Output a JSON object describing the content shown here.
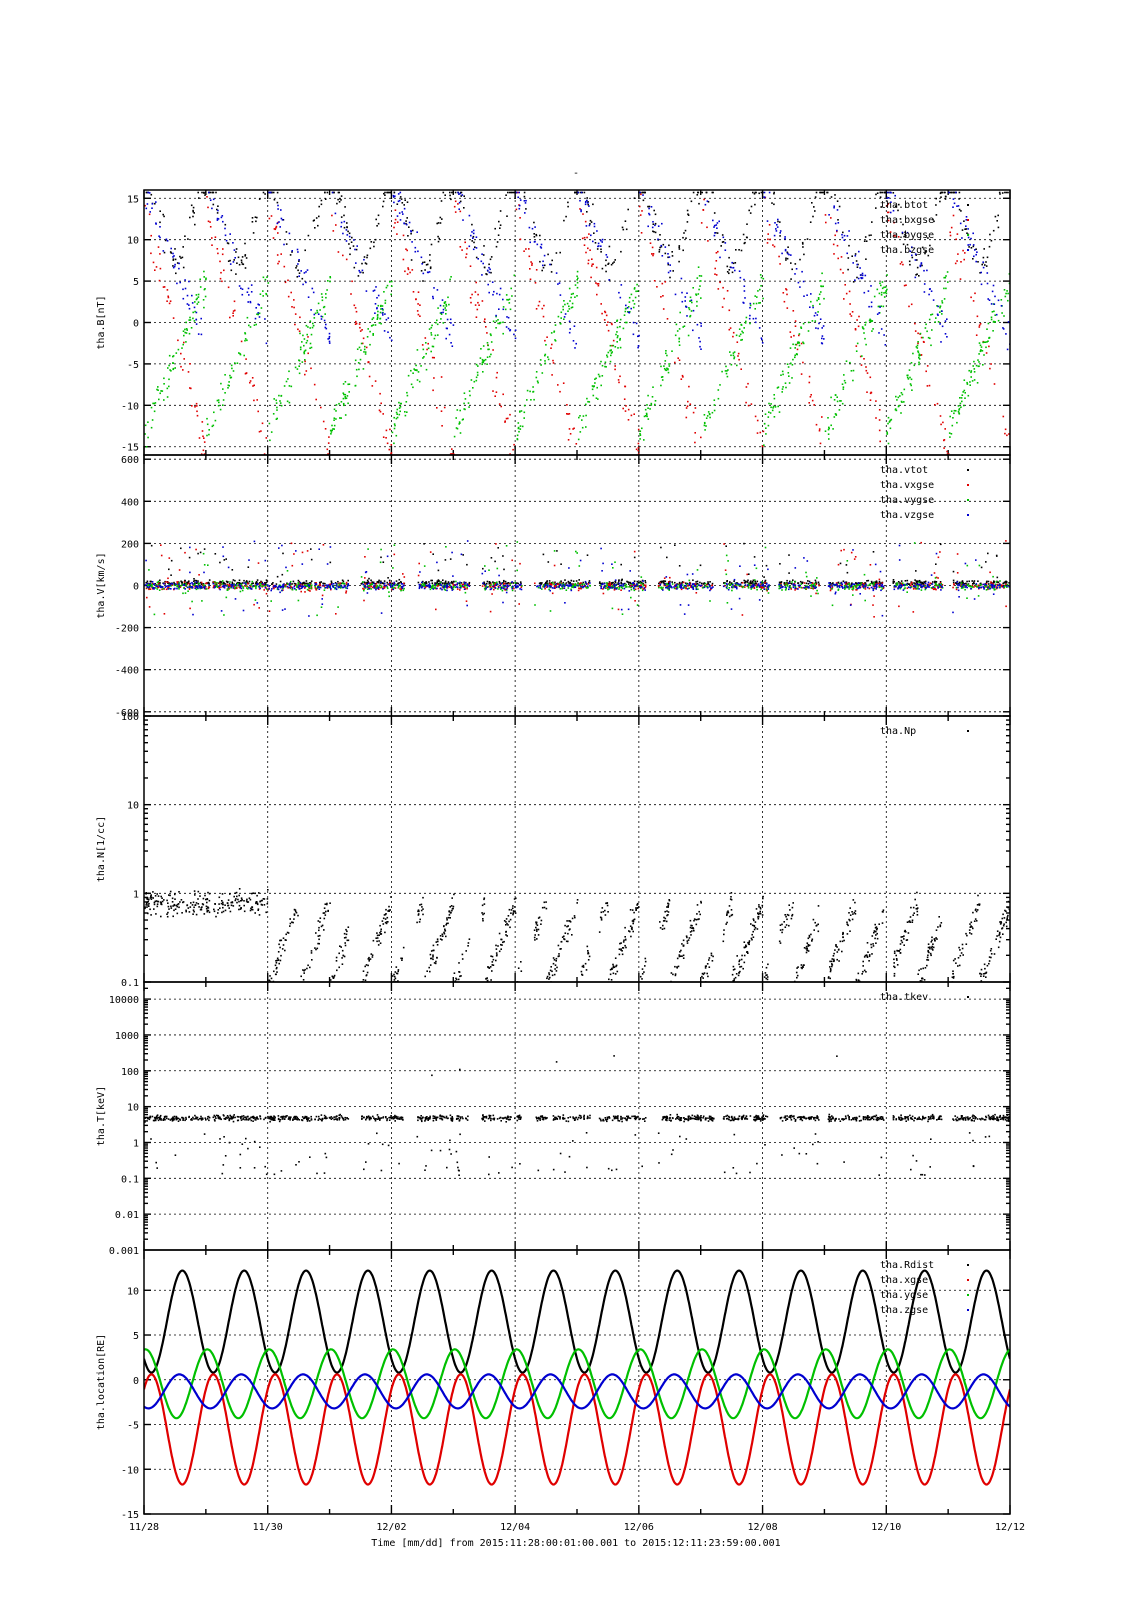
{
  "chart_data": {
    "type": "scatter",
    "title": "-",
    "time_axis": {
      "start": "11/28",
      "end": "12/12",
      "tick_labels": [
        "11/28",
        "11/30",
        "12/02",
        "12/04",
        "12/06",
        "12/08",
        "12/10",
        "12/12"
      ],
      "minor_ticks_per_day": 1,
      "label": "Time [mm/dd]  from 2015:11:28:00:01:00.001  to  2015:12:11:23:59:00.001"
    },
    "colors": {
      "black": "#000000",
      "red": "#e00000",
      "green": "#00c000",
      "blue": "#0000d0"
    },
    "panels": [
      {
        "id": "B",
        "ylabel": "tha.B[nT]",
        "scale": "linear",
        "ylim": [
          -16,
          16
        ],
        "y_ticks": [
          -15,
          -10,
          -5,
          0,
          5,
          10,
          15
        ],
        "y_tick_labels": [
          "-15",
          "-10",
          "-5",
          "0",
          "5",
          "10",
          "15"
        ],
        "grid": true,
        "series": [
          {
            "name": "tha.btot",
            "color": "black"
          },
          {
            "name": "tha.bxgse",
            "color": "red"
          },
          {
            "name": "tha.bygse",
            "color": "green"
          },
          {
            "name": "tha.bzgse",
            "color": "blue"
          }
        ]
      },
      {
        "id": "V",
        "ylabel": "tha.V[km/s]",
        "scale": "linear",
        "ylim": [
          -620,
          620
        ],
        "y_ticks": [
          -600,
          -400,
          -200,
          0,
          200,
          400,
          600
        ],
        "y_tick_labels": [
          "-600",
          "-400",
          "-200",
          "0",
          "200",
          "400",
          "600"
        ],
        "grid": true,
        "series": [
          {
            "name": "tha.vtot",
            "color": "black"
          },
          {
            "name": "tha.vxgse",
            "color": "red"
          },
          {
            "name": "tha.vygse",
            "color": "green"
          },
          {
            "name": "tha.vzgse",
            "color": "blue"
          }
        ]
      },
      {
        "id": "N",
        "ylabel": "tha.N[1/cc]",
        "scale": "log",
        "ylim": [
          0.1,
          100
        ],
        "y_ticks": [
          0.1,
          1,
          10,
          100
        ],
        "y_tick_labels": [
          "0.1",
          "1",
          "10",
          "100"
        ],
        "grid": true,
        "series": [
          {
            "name": "tha.Np",
            "color": "black"
          }
        ]
      },
      {
        "id": "T",
        "ylabel": "tha.T[keV]",
        "scale": "log",
        "ylim": [
          0.001,
          30000
        ],
        "y_ticks": [
          0.01,
          0.1,
          1,
          10,
          100,
          1000,
          10000
        ],
        "y_tick_labels": [
          "0.01",
          "0.1",
          "1",
          "10",
          "100",
          "1000",
          "10000"
        ],
        "bottom_tick_label": "0.001",
        "grid": true,
        "series": [
          {
            "name": "tha.tkev",
            "color": "black"
          }
        ]
      },
      {
        "id": "L",
        "ylabel": "tha.location[RE]",
        "scale": "linear",
        "ylim": [
          -15,
          14.5
        ],
        "y_ticks": [
          -15,
          -10,
          -5,
          0,
          5,
          10
        ],
        "y_tick_labels": [
          "-15",
          "-10",
          "-5",
          "0",
          "5",
          "10"
        ],
        "grid": true,
        "orbit_period_days": 1.0,
        "series": [
          {
            "name": "tha.Rdist",
            "color": "black",
            "min": 0.8,
            "max": 12.2
          },
          {
            "name": "tha.xgse",
            "color": "red",
            "min": -11.7,
            "max": 0.6
          },
          {
            "name": "tha.ygse",
            "color": "green",
            "min": -4.3,
            "max": 3.4
          },
          {
            "name": "tha.zgse",
            "color": "blue",
            "min": -3.2,
            "max": 0.6
          }
        ]
      }
    ]
  }
}
